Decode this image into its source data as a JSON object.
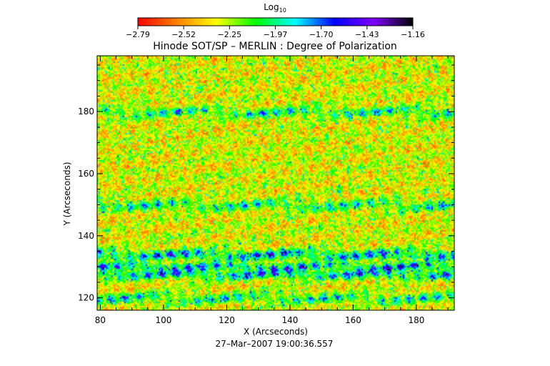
{
  "chart_data": {
    "type": "heatmap",
    "title": "Hinode SOT/SP – MERLIN : Degree of Polarization",
    "colorbar": {
      "label_base": "Log",
      "label_sub": "10",
      "ticks": [
        "−2.79",
        "−2.52",
        "−2.25",
        "−1.97",
        "−1.70",
        "−1.43",
        "−1.16"
      ],
      "min": -2.79,
      "max": -1.16,
      "colormap": [
        "#ff0000",
        "#ff8000",
        "#ffff00",
        "#00ff00",
        "#00ffff",
        "#0000ff",
        "#8000ff",
        "#000000"
      ]
    },
    "xlabel": "X (Arcseconds)",
    "ylabel": "Y (Arcseconds)",
    "xlim": [
      79,
      192
    ],
    "ylim": [
      116,
      198
    ],
    "xticks": [
      80,
      100,
      120,
      140,
      160,
      180
    ],
    "yticks": [
      120,
      140,
      160,
      180
    ],
    "timestamp": "27–Mar–2007 19:00:36.557",
    "grid": "off",
    "high_polarization_bands_y": [
      130,
      128,
      134,
      180,
      150,
      120
    ]
  }
}
